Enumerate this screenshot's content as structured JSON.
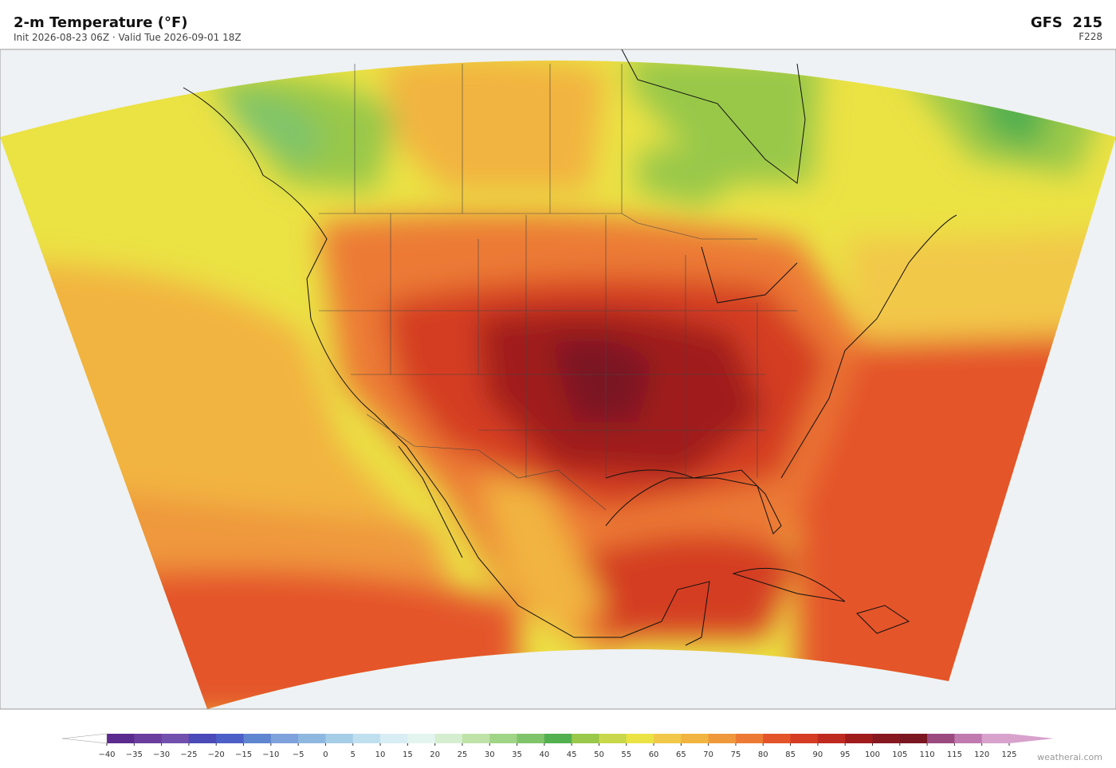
{
  "header": {
    "title": "2-m Temperature  (°F)",
    "subtitle": "Init 2026-08-23 06Z  ·  Valid Tue 2026-09-01 18Z",
    "model": "GFS  215",
    "forecast": "F228"
  },
  "colorbar": {
    "ticks": [
      {
        "value": -40,
        "label": "−40"
      },
      {
        "value": -35,
        "label": "−35"
      },
      {
        "value": -30,
        "label": "−30"
      },
      {
        "value": -25,
        "label": "−25"
      },
      {
        "value": -20,
        "label": "−20"
      },
      {
        "value": -15,
        "label": "−15"
      },
      {
        "value": -10,
        "label": "−10"
      },
      {
        "value": -5,
        "label": "−5"
      },
      0,
      5,
      10,
      15,
      20,
      25,
      30,
      35,
      40,
      45,
      50,
      55,
      60,
      65,
      70,
      75,
      80,
      85,
      90,
      95,
      100,
      105,
      110,
      115,
      120,
      125
    ],
    "colors": [
      "#5b2a8e",
      "#6b3d9e",
      "#7150ae",
      "#4a4ab8",
      "#4c5fc8",
      "#5f85d0",
      "#7fa2dc",
      "#8fb8e0",
      "#a6cde8",
      "#c0e0f0",
      "#d8eef4",
      "#e4f4ee",
      "#d6eed0",
      "#bfe2a8",
      "#a0d486",
      "#7fc46a",
      "#52b04f",
      "#99c84a",
      "#c9d84a",
      "#ebe244",
      "#f2c84a",
      "#f2b440",
      "#ef983c",
      "#ec7a34",
      "#e4542a",
      "#d43c24",
      "#bf2a20",
      "#a01c1c",
      "#881820",
      "#7a1620",
      "#9b4a80",
      "#c07ab0",
      "#d8a2cc"
    ],
    "under_color": "#ffffff",
    "over_color": "#d8a2cc"
  },
  "footer": {
    "credit": "weatherai.com"
  }
}
